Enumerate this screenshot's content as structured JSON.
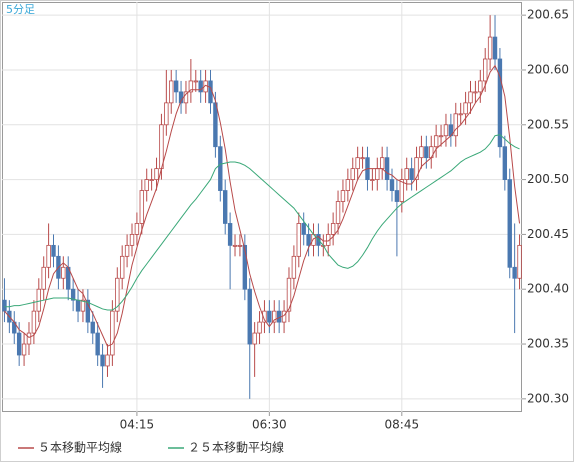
{
  "chart_data": {
    "type": "candlestick",
    "title": "5分足",
    "categories": [
      null,
      null,
      null,
      null,
      null,
      null,
      null,
      null,
      null,
      null,
      null,
      null,
      null,
      null,
      null,
      null,
      null,
      null,
      null,
      null,
      null,
      null,
      null,
      null,
      null,
      null,
      null,
      "04:15",
      null,
      null,
      null,
      null,
      null,
      null,
      null,
      null,
      null,
      null,
      null,
      null,
      null,
      null,
      null,
      null,
      null,
      null,
      null,
      null,
      null,
      null,
      null,
      null,
      null,
      null,
      "06:30",
      null,
      null,
      null,
      null,
      null,
      null,
      null,
      null,
      null,
      null,
      null,
      null,
      null,
      null,
      null,
      null,
      null,
      null,
      null,
      null,
      null,
      null,
      null,
      null,
      null,
      null,
      "08:45",
      null,
      null,
      null,
      null,
      null,
      null,
      null,
      null,
      null,
      null,
      null,
      null,
      null,
      null,
      null,
      null,
      null,
      null,
      null,
      null,
      null,
      null,
      null,
      null
    ],
    "open": [
      200.39,
      200.38,
      200.37,
      200.36,
      200.34,
      200.35,
      200.36,
      200.38,
      200.4,
      200.42,
      200.44,
      200.43,
      200.41,
      200.42,
      200.4,
      200.39,
      200.38,
      200.39,
      200.37,
      200.36,
      200.34,
      200.33,
      200.34,
      200.38,
      200.41,
      200.43,
      200.44,
      200.45,
      200.46,
      200.49,
      200.5,
      200.5,
      200.51,
      200.55,
      200.57,
      200.59,
      200.58,
      200.57,
      200.58,
      200.59,
      200.59,
      200.58,
      200.59,
      200.57,
      200.53,
      200.49,
      200.46,
      200.44,
      200.44,
      200.44,
      200.4,
      200.35,
      200.36,
      200.37,
      200.38,
      200.37,
      200.38,
      200.37,
      200.38,
      200.41,
      200.43,
      200.46,
      200.45,
      200.44,
      200.45,
      200.44,
      200.44,
      200.45,
      200.46,
      200.48,
      200.49,
      200.5,
      200.51,
      200.52,
      200.52,
      200.5,
      200.5,
      200.51,
      200.52,
      200.5,
      200.49,
      200.48,
      200.5,
      200.51,
      200.5,
      200.52,
      200.53,
      200.52,
      200.53,
      200.54,
      200.54,
      200.55,
      200.54,
      200.56,
      200.56,
      200.57,
      200.58,
      200.58,
      200.59,
      200.61,
      200.63,
      200.61,
      200.53,
      200.5,
      200.42,
      200.41
    ],
    "high": [
      200.41,
      200.39,
      200.38,
      200.37,
      200.36,
      200.37,
      200.39,
      200.41,
      200.43,
      200.46,
      200.45,
      200.44,
      200.43,
      200.43,
      200.41,
      200.4,
      200.4,
      200.4,
      200.38,
      200.37,
      200.35,
      200.35,
      200.39,
      200.42,
      200.44,
      200.45,
      200.46,
      200.47,
      200.5,
      200.51,
      200.51,
      200.52,
      200.56,
      200.6,
      200.6,
      200.6,
      200.59,
      200.59,
      200.61,
      200.6,
      200.6,
      200.6,
      200.6,
      200.58,
      200.54,
      200.5,
      200.47,
      200.45,
      200.45,
      200.45,
      200.41,
      200.37,
      200.38,
      200.39,
      200.39,
      200.39,
      200.39,
      200.39,
      200.42,
      200.44,
      200.47,
      200.47,
      200.46,
      200.46,
      200.46,
      200.45,
      200.46,
      200.47,
      200.49,
      200.5,
      200.51,
      200.52,
      200.53,
      200.53,
      200.53,
      200.51,
      200.52,
      200.53,
      200.53,
      200.51,
      200.5,
      200.51,
      200.52,
      200.52,
      200.53,
      200.54,
      200.54,
      200.54,
      200.55,
      200.55,
      200.56,
      200.56,
      200.57,
      200.57,
      200.58,
      200.59,
      200.59,
      200.6,
      200.62,
      200.65,
      200.65,
      200.62,
      200.54,
      200.51,
      200.46,
      200.45
    ],
    "low": [
      200.37,
      200.36,
      200.35,
      200.33,
      200.33,
      200.34,
      200.35,
      200.37,
      200.39,
      200.41,
      200.42,
      200.4,
      200.4,
      200.39,
      200.38,
      200.37,
      200.37,
      200.36,
      200.35,
      200.33,
      200.31,
      200.32,
      200.33,
      200.37,
      200.4,
      200.42,
      200.43,
      200.44,
      200.45,
      200.48,
      200.49,
      200.49,
      200.5,
      200.54,
      200.56,
      200.57,
      200.56,
      200.56,
      200.57,
      200.58,
      200.57,
      200.57,
      200.56,
      200.52,
      200.48,
      200.45,
      200.4,
      200.43,
      200.43,
      200.39,
      200.3,
      200.32,
      200.35,
      200.36,
      200.36,
      200.36,
      200.36,
      200.36,
      200.37,
      200.4,
      200.42,
      200.44,
      200.43,
      200.43,
      200.43,
      200.43,
      200.43,
      200.44,
      200.45,
      200.47,
      200.48,
      200.49,
      200.5,
      200.51,
      200.49,
      200.49,
      200.49,
      200.5,
      200.49,
      200.48,
      200.43,
      200.47,
      200.49,
      200.49,
      200.49,
      200.51,
      200.51,
      200.51,
      200.52,
      200.53,
      200.53,
      200.53,
      200.53,
      200.55,
      200.55,
      200.56,
      200.57,
      200.57,
      200.58,
      200.6,
      200.6,
      200.52,
      200.49,
      200.41,
      200.36,
      200.4
    ],
    "close": [
      200.38,
      200.37,
      200.36,
      200.34,
      200.35,
      200.36,
      200.38,
      200.4,
      200.42,
      200.44,
      200.43,
      200.41,
      200.42,
      200.4,
      200.39,
      200.38,
      200.39,
      200.37,
      200.36,
      200.34,
      200.33,
      200.34,
      200.38,
      200.41,
      200.43,
      200.44,
      200.45,
      200.46,
      200.49,
      200.5,
      200.5,
      200.51,
      200.55,
      200.57,
      200.59,
      200.58,
      200.57,
      200.58,
      200.59,
      200.59,
      200.58,
      200.59,
      200.57,
      200.53,
      200.49,
      200.46,
      200.44,
      200.44,
      200.44,
      200.4,
      200.35,
      200.36,
      200.37,
      200.38,
      200.37,
      200.38,
      200.37,
      200.38,
      200.41,
      200.43,
      200.46,
      200.45,
      200.44,
      200.45,
      200.44,
      200.44,
      200.45,
      200.46,
      200.48,
      200.49,
      200.5,
      200.51,
      200.52,
      200.52,
      200.5,
      200.5,
      200.51,
      200.52,
      200.5,
      200.49,
      200.48,
      200.5,
      200.51,
      200.5,
      200.52,
      200.53,
      200.52,
      200.53,
      200.54,
      200.54,
      200.55,
      200.54,
      200.56,
      200.56,
      200.57,
      200.58,
      200.58,
      200.59,
      200.61,
      200.63,
      200.61,
      200.53,
      200.5,
      200.42,
      200.41,
      200.44
    ],
    "up_color": "#b84a4a",
    "down_color": "#4a78b0",
    "series": [
      {
        "name": "５本移動平均線",
        "color": "#b84a4a",
        "values": [
          200.38,
          200.375,
          200.37,
          200.363,
          200.36,
          200.356,
          200.358,
          200.366,
          200.382,
          200.4,
          200.414,
          200.42,
          200.424,
          200.42,
          200.41,
          200.4,
          200.396,
          200.386,
          200.378,
          200.368,
          200.358,
          200.348,
          200.35,
          200.36,
          200.378,
          200.4,
          200.422,
          200.438,
          200.454,
          200.468,
          200.48,
          200.492,
          200.51,
          200.526,
          200.544,
          200.56,
          200.572,
          200.578,
          200.582,
          200.582,
          200.582,
          200.586,
          200.584,
          200.572,
          200.552,
          200.528,
          200.498,
          200.472,
          200.454,
          200.436,
          200.414,
          200.398,
          200.384,
          200.372,
          200.366,
          200.372,
          200.374,
          200.376,
          200.382,
          200.394,
          200.41,
          200.426,
          200.438,
          200.446,
          200.448,
          200.444,
          200.444,
          200.448,
          200.454,
          200.464,
          200.476,
          200.488,
          200.5,
          200.508,
          200.51,
          200.51,
          200.51,
          200.51,
          200.506,
          200.504,
          200.5,
          200.498,
          200.496,
          200.496,
          200.502,
          200.512,
          200.516,
          200.52,
          200.528,
          200.532,
          200.536,
          200.54,
          200.546,
          200.55,
          200.556,
          200.562,
          200.57,
          200.576,
          200.586,
          200.598,
          200.604,
          200.594,
          200.576,
          200.538,
          200.494,
          200.46
        ]
      },
      {
        "name": "２５本移動平均線",
        "color": "#3aa878",
        "values": [
          200.384,
          200.384,
          200.385,
          200.385,
          200.386,
          200.387,
          200.388,
          200.389,
          200.39,
          200.391,
          200.392,
          200.392,
          200.392,
          200.392,
          200.391,
          200.39,
          200.389,
          200.388,
          200.386,
          200.384,
          200.382,
          200.381,
          200.381,
          200.384,
          200.389,
          200.395,
          200.402,
          200.41,
          200.417,
          200.423,
          200.429,
          200.435,
          200.441,
          200.447,
          200.453,
          200.459,
          200.465,
          200.471,
          200.477,
          200.482,
          200.488,
          200.494,
          200.5,
          200.51,
          200.514,
          200.515,
          200.516,
          200.516,
          200.515,
          200.513,
          200.51,
          200.506,
          200.502,
          200.498,
          200.494,
          200.49,
          200.486,
          200.482,
          200.478,
          200.474,
          200.468,
          200.462,
          200.456,
          200.45,
          200.445,
          200.44,
          200.432,
          200.427,
          200.422,
          200.42,
          200.419,
          200.421,
          200.425,
          200.431,
          200.438,
          200.446,
          200.453,
          200.459,
          200.464,
          200.469,
          200.474,
          200.478,
          200.481,
          200.484,
          200.487,
          200.49,
          200.493,
          200.496,
          200.499,
          200.502,
          200.505,
          200.508,
          200.512,
          200.516,
          200.519,
          200.521,
          200.523,
          200.525,
          200.528,
          200.533,
          200.54,
          200.541,
          200.537,
          200.533,
          200.53,
          200.528
        ]
      }
    ],
    "ylim": [
      200.288,
      200.662
    ],
    "yticks": [
      {
        "value": 200.3,
        "label": "200.30"
      },
      200.35,
      {
        "value": 200.4,
        "label": "200.40"
      },
      200.45,
      {
        "value": 200.5,
        "label": "200.50"
      },
      200.55,
      {
        "value": 200.6,
        "label": "200.60"
      },
      200.65
    ],
    "grid": true
  }
}
